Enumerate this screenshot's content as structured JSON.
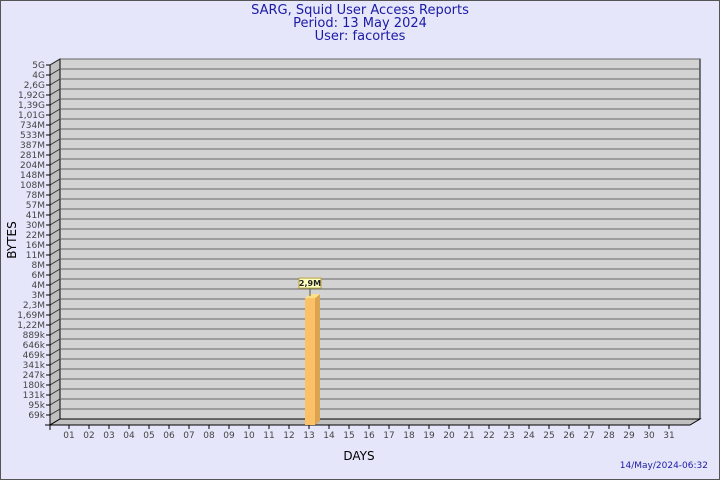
{
  "header": {
    "title": "SARG, Squid User Access Reports",
    "period": "Period: 13 May 2024",
    "user": "User: facortes"
  },
  "footer": {
    "timestamp": "14/May/2024-06:32"
  },
  "colors": {
    "background": "#e6e6fa",
    "plot": "#d3d3d3",
    "bar": "#fcc066",
    "bar_side": "#dba450",
    "title": "#1a1aa6"
  },
  "chart_data": {
    "type": "bar",
    "xlabel": "DAYS",
    "ylabel": "BYTES",
    "y_scale": "log",
    "y_tick_labels": [
      "5G",
      "4G",
      "2,6G",
      "1,92G",
      "1,39G",
      "1,01G",
      "734M",
      "533M",
      "387M",
      "281M",
      "204M",
      "148M",
      "108M",
      "78M",
      "57M",
      "41M",
      "30M",
      "22M",
      "16M",
      "11M",
      "8M",
      "6M",
      "4M",
      "3M",
      "2,3M",
      "1,69M",
      "1,22M",
      "889k",
      "646k",
      "469k",
      "341k",
      "247k",
      "180k",
      "131k",
      "95k",
      "69k"
    ],
    "categories": [
      "01",
      "02",
      "03",
      "04",
      "05",
      "06",
      "07",
      "08",
      "09",
      "10",
      "11",
      "12",
      "13",
      "14",
      "15",
      "16",
      "17",
      "18",
      "19",
      "20",
      "21",
      "22",
      "23",
      "24",
      "25",
      "26",
      "27",
      "28",
      "29",
      "30",
      "31"
    ],
    "values": [
      {
        "day": "13",
        "bytes": 2900000,
        "label": "2,9M"
      }
    ],
    "grid": true
  }
}
